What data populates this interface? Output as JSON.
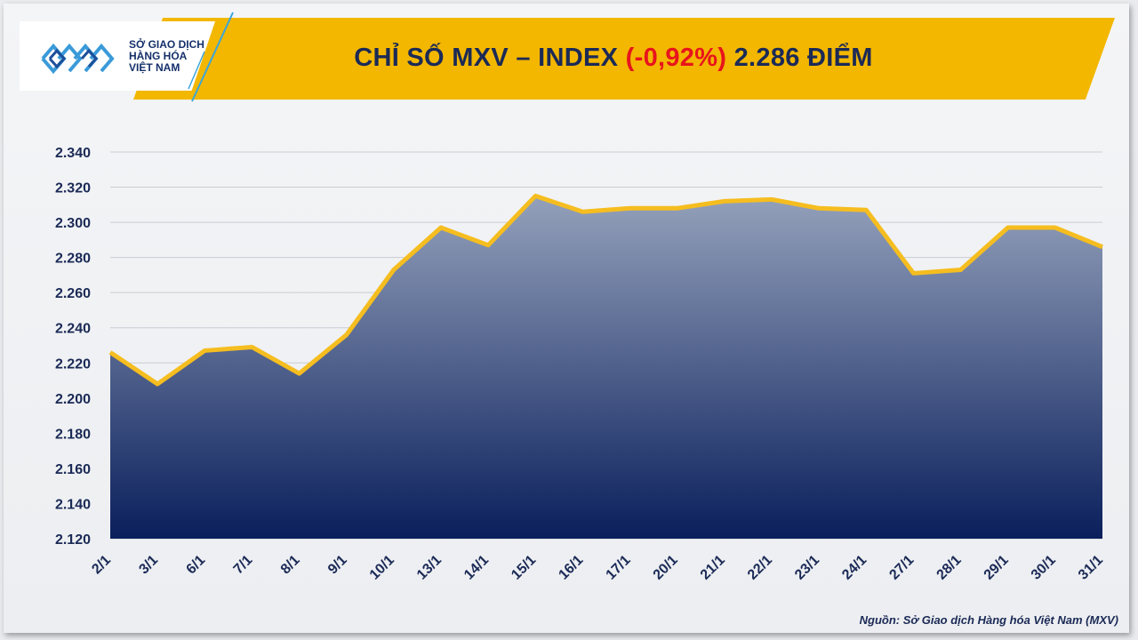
{
  "header": {
    "title_prefix": "CHỈ SỐ MXV – INDEX ",
    "title_change": "(-0,92%)",
    "title_suffix": " 2.286 ĐIỂM"
  },
  "logo": {
    "line1": "SỞ GIAO DỊCH",
    "line2": "HÀNG HÓA",
    "line3": "VIỆT NAM",
    "icon": "mxv-logo-icon"
  },
  "source": "Nguồn: Sở Giao dịch Hàng hóa Việt Nam (MXV)",
  "colors": {
    "banner": "#f3b700",
    "title": "#1b2a56",
    "negative": "#e8141c",
    "line": "#f5bd1f",
    "area_top": "#94a1bb",
    "area_bottom": "#0a1f5c"
  },
  "chart_data": {
    "type": "area",
    "categories": [
      "2/1",
      "3/1",
      "6/1",
      "7/1",
      "8/1",
      "9/1",
      "10/1",
      "13/1",
      "14/1",
      "15/1",
      "16/1",
      "17/1",
      "20/1",
      "21/1",
      "22/1",
      "23/1",
      "24/1",
      "27/1",
      "28/1",
      "29/1",
      "30/1",
      "31/1"
    ],
    "values": [
      2226,
      2208,
      2227,
      2229,
      2214,
      2236,
      2273,
      2297,
      2287,
      2315,
      2306,
      2308,
      2308,
      2312,
      2313,
      2308,
      2307,
      2271,
      2273,
      2297,
      2297,
      2286
    ],
    "ylim": [
      2120,
      2340
    ],
    "yticks": [
      "2.120",
      "2.140",
      "2.160",
      "2.180",
      "2.200",
      "2.220",
      "2.240",
      "2.260",
      "2.280",
      "2.300",
      "2.320",
      "2.340"
    ],
    "grid": true
  }
}
